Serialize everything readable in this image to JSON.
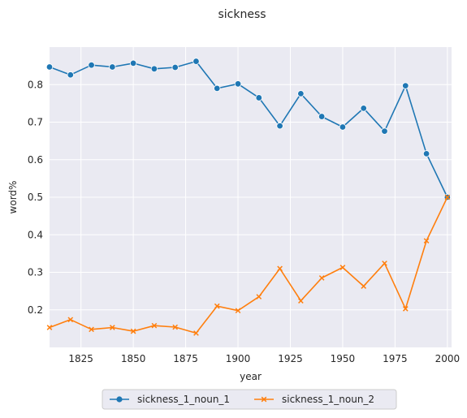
{
  "chart_data": {
    "type": "line",
    "title": "sickness",
    "xlabel": "year",
    "ylabel": "word%",
    "xlim": [
      1810,
      2002
    ],
    "ylim": [
      0.1,
      0.9
    ],
    "xticks": [
      1825,
      1850,
      1875,
      1900,
      1925,
      1950,
      1975,
      2000
    ],
    "yticks": [
      0.2,
      0.3,
      0.4,
      0.5,
      0.6,
      0.7,
      0.8
    ],
    "ytick_labels": [
      "0.2",
      "0.3",
      "0.4",
      "0.5",
      "0.6",
      "0.7",
      "0.8"
    ],
    "grid": true,
    "legend_placement": "bottom-center",
    "x": [
      1810,
      1820,
      1830,
      1840,
      1850,
      1860,
      1870,
      1880,
      1890,
      1900,
      1910,
      1920,
      1930,
      1940,
      1950,
      1960,
      1970,
      1980,
      1990,
      2000
    ],
    "series": [
      {
        "name": "sickness_1_noun_1",
        "color": "#1f77b4",
        "marker": "circle",
        "values": [
          0.847,
          0.826,
          0.852,
          0.847,
          0.857,
          0.842,
          0.846,
          0.862,
          0.79,
          0.802,
          0.765,
          0.69,
          0.776,
          0.715,
          0.687,
          0.737,
          0.676,
          0.797,
          0.616,
          0.5
        ]
      },
      {
        "name": "sickness_1_noun_2",
        "color": "#ff7f0e",
        "marker": "x",
        "values": [
          0.153,
          0.174,
          0.148,
          0.153,
          0.143,
          0.158,
          0.154,
          0.138,
          0.21,
          0.198,
          0.235,
          0.31,
          0.224,
          0.285,
          0.313,
          0.263,
          0.324,
          0.203,
          0.384,
          0.5
        ]
      }
    ]
  }
}
